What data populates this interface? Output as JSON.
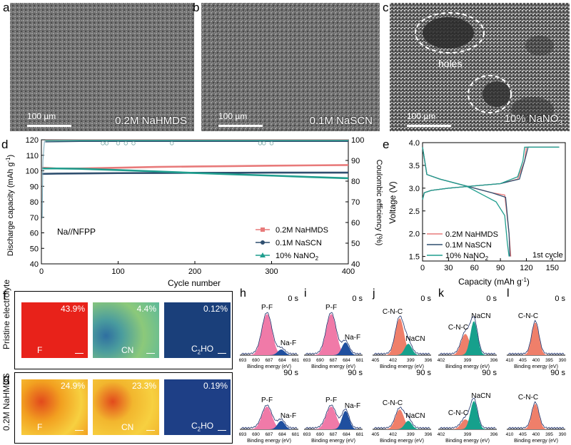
{
  "panels": {
    "a": {
      "letter": "a",
      "label": "0.2M NaHMDS",
      "scale": "100 µm"
    },
    "b": {
      "letter": "b",
      "label": "0.1M NaSCN",
      "scale": "100 µm"
    },
    "c": {
      "letter": "c",
      "label": "10% NaNO",
      "label_sub": "3",
      "scale": "100 µm",
      "annotation": "holes"
    },
    "d": {
      "letter": "d"
    },
    "e": {
      "letter": "e"
    },
    "f": {
      "letter": "f"
    },
    "g": {
      "letter": "g"
    }
  },
  "tof": {
    "row_f_label": "Pristine electrolyte",
    "row_g_label": "0.2M NaHMDS",
    "f": [
      {
        "pct": "43.9%",
        "label": "F",
        "color": "#e8221a"
      },
      {
        "pct": "4.4%",
        "label": "CN",
        "color": "#5db99a"
      },
      {
        "pct": "0.12%",
        "label": "C",
        "label_sub": "2",
        "label_rest": "HO",
        "color": "#1a3f7a"
      }
    ],
    "g": [
      {
        "pct": "24.9%",
        "label": "F",
        "color": "#f2a020"
      },
      {
        "pct": "23.3%",
        "label": "CN",
        "color": "#f2b62e"
      },
      {
        "pct": "0.19%",
        "label": "C",
        "label_sub": "2",
        "label_rest": "HO",
        "color": "#1e3f86"
      }
    ]
  },
  "xps": {
    "xlabel": "Binding energy (eV)",
    "time_top": "0 s",
    "time_bottom": "90 s",
    "panels": [
      {
        "letter": "h",
        "ticks": [
          "693",
          "690",
          "687",
          "684",
          "681"
        ],
        "peak1": "P-F",
        "peak2": "Na-F"
      },
      {
        "letter": "i",
        "ticks": [
          "693",
          "690",
          "687",
          "684",
          "681"
        ],
        "peak1": "P-F",
        "peak2": "Na-F"
      },
      {
        "letter": "j",
        "ticks": [
          "405",
          "402",
          "399",
          "396"
        ],
        "peak1": "C-N-C",
        "peak2": "NaCN"
      },
      {
        "letter": "k",
        "ticks": [
          "402",
          "399",
          "396"
        ],
        "tick0": "",
        "peak1": "C-N-C",
        "peak2": "NaCN"
      },
      {
        "letter": "l",
        "ticks": [
          "410",
          "405",
          "400",
          "395",
          "390"
        ],
        "peak1": "C-N-C",
        "peak2": ""
      }
    ]
  },
  "chart_data": [
    {
      "id": "d",
      "type": "scatter",
      "xlabel": "Cycle number",
      "ylabel": "Discharge capacity (mAh g",
      "ylabel_sup": "-1",
      "ylabel_end": ")",
      "y2label": "Coulombic efficiency (%)",
      "xlim": [
        0,
        400
      ],
      "ylim": [
        40,
        120
      ],
      "y2lim": [
        40,
        100
      ],
      "xticks": [
        "0",
        "100",
        "200",
        "300",
        "400"
      ],
      "yticks": [
        "40",
        "50",
        "60",
        "70",
        "80",
        "90",
        "100",
        "110",
        "120"
      ],
      "y2ticks": [
        "40",
        "50",
        "60",
        "70",
        "80",
        "90",
        "100"
      ],
      "annotation": "Na//NFPP",
      "legend": [
        {
          "name": "0.2M NaHMDS",
          "color": "#e87a7a",
          "marker": "square"
        },
        {
          "name": "0.1M NaSCN",
          "color": "#2f4f6f",
          "marker": "circle"
        },
        {
          "name": "10% NaNO",
          "name_sub": "2",
          "color": "#1f9e8e",
          "marker": "triangle"
        }
      ],
      "series": [
        {
          "name": "0.2M NaHMDS capacity",
          "color": "#e87a7a",
          "x": [
            1,
            20,
            50,
            100,
            150,
            200,
            250,
            300,
            350,
            400
          ],
          "values": [
            102,
            101.5,
            101.5,
            102,
            102.5,
            102.8,
            103,
            103.3,
            103.5,
            103.7
          ]
        },
        {
          "name": "0.1M NaSCN capacity",
          "color": "#2f4f6f",
          "x": [
            1,
            20,
            50,
            100,
            150,
            200,
            250,
            300,
            350,
            400
          ],
          "values": [
            98,
            98.2,
            98.3,
            98.5,
            98.6,
            98.7,
            98.7,
            98.8,
            98.8,
            98.8
          ]
        },
        {
          "name": "10% NaNO2 capacity",
          "color": "#1f9e8e",
          "x": [
            1,
            20,
            50,
            100,
            150,
            200,
            250,
            300,
            350,
            400
          ],
          "values": [
            101.5,
            101.5,
            101.3,
            100.5,
            99.6,
            98.6,
            97.7,
            96.9,
            96,
            95.2
          ]
        },
        {
          "name": "0.2M NaHMDS CE",
          "color": "#e87a7a",
          "x": [
            5,
            50,
            100,
            200,
            300,
            400
          ],
          "values": [
            99.8,
            99.9,
            99.9,
            99.9,
            99.9,
            99.9
          ]
        },
        {
          "name": "10% NaNO2 CE",
          "color": "#1f9e8e",
          "x": [
            5,
            50,
            100,
            200,
            300,
            400
          ],
          "values": [
            99.6,
            99.7,
            99.7,
            99.7,
            99.7,
            99.7
          ]
        },
        {
          "name": "0.1M NaSCN CE",
          "color": "#2f4f6f",
          "x": [
            5,
            50,
            100,
            200,
            300,
            400
          ],
          "values": [
            99.0,
            99.2,
            99.2,
            99.2,
            99.2,
            99.2
          ]
        }
      ]
    },
    {
      "id": "e",
      "type": "line",
      "xlabel": "Capacity (mAh g",
      "xlabel_sup": "-1",
      "xlabel_end": ")",
      "ylabel": "Voltage (V)",
      "xlim": [
        0,
        165
      ],
      "ylim": [
        1.4,
        4.0
      ],
      "xticks": [
        "0",
        "30",
        "60",
        "90",
        "120",
        "150"
      ],
      "yticks": [
        "1.5",
        "2.0",
        "2.5",
        "3.0",
        "3.5",
        "4.0"
      ],
      "annotation": "1st cycle",
      "legend": [
        {
          "name": "0.2M NaHMDS",
          "color": "#e87a7a"
        },
        {
          "name": "0.1M NaSCN",
          "color": "#2f4f6f"
        },
        {
          "name": "10% NaNO",
          "name_sub": "2",
          "color": "#1f9e8e"
        }
      ],
      "series": [
        {
          "name": "0.2M NaHMDS charge",
          "color": "#e87a7a",
          "x": [
            0,
            2,
            10,
            30,
            60,
            90,
            110,
            118,
            120,
            158
          ],
          "values": [
            2.75,
            2.9,
            2.95,
            3.0,
            3.05,
            3.1,
            3.2,
            3.6,
            3.9,
            3.9
          ]
        },
        {
          "name": "0.2M NaHMDS discharge",
          "color": "#e87a7a",
          "x": [
            0,
            5,
            20,
            50,
            80,
            95,
            100,
            102
          ],
          "values": [
            3.9,
            3.3,
            3.2,
            3.05,
            2.9,
            2.85,
            2.0,
            1.5
          ]
        },
        {
          "name": "0.1M NaSCN charge",
          "color": "#2f4f6f",
          "x": [
            0,
            2,
            10,
            30,
            60,
            90,
            112,
            118,
            122,
            158
          ],
          "values": [
            2.75,
            2.9,
            2.95,
            3.0,
            3.05,
            3.1,
            3.2,
            3.6,
            3.9,
            3.9
          ]
        },
        {
          "name": "0.1M NaSCN discharge",
          "color": "#2f4f6f",
          "x": [
            0,
            5,
            20,
            50,
            80,
            96,
            100,
            101
          ],
          "values": [
            3.9,
            3.3,
            3.2,
            3.05,
            2.9,
            2.8,
            2.0,
            1.5
          ]
        },
        {
          "name": "10% NaNO2 charge",
          "color": "#1f9e8e",
          "x": [
            0,
            2,
            10,
            30,
            60,
            90,
            110,
            116,
            118,
            158
          ],
          "values": [
            2.75,
            2.9,
            2.95,
            3.0,
            3.05,
            3.1,
            3.25,
            3.6,
            3.9,
            3.9
          ]
        },
        {
          "name": "10% NaNO2 discharge",
          "color": "#1f9e8e",
          "x": [
            0,
            5,
            20,
            50,
            70,
            85,
            95,
            98,
            100
          ],
          "values": [
            3.9,
            3.3,
            3.2,
            3.05,
            2.85,
            2.7,
            2.4,
            1.8,
            1.5
          ]
        }
      ]
    }
  ]
}
